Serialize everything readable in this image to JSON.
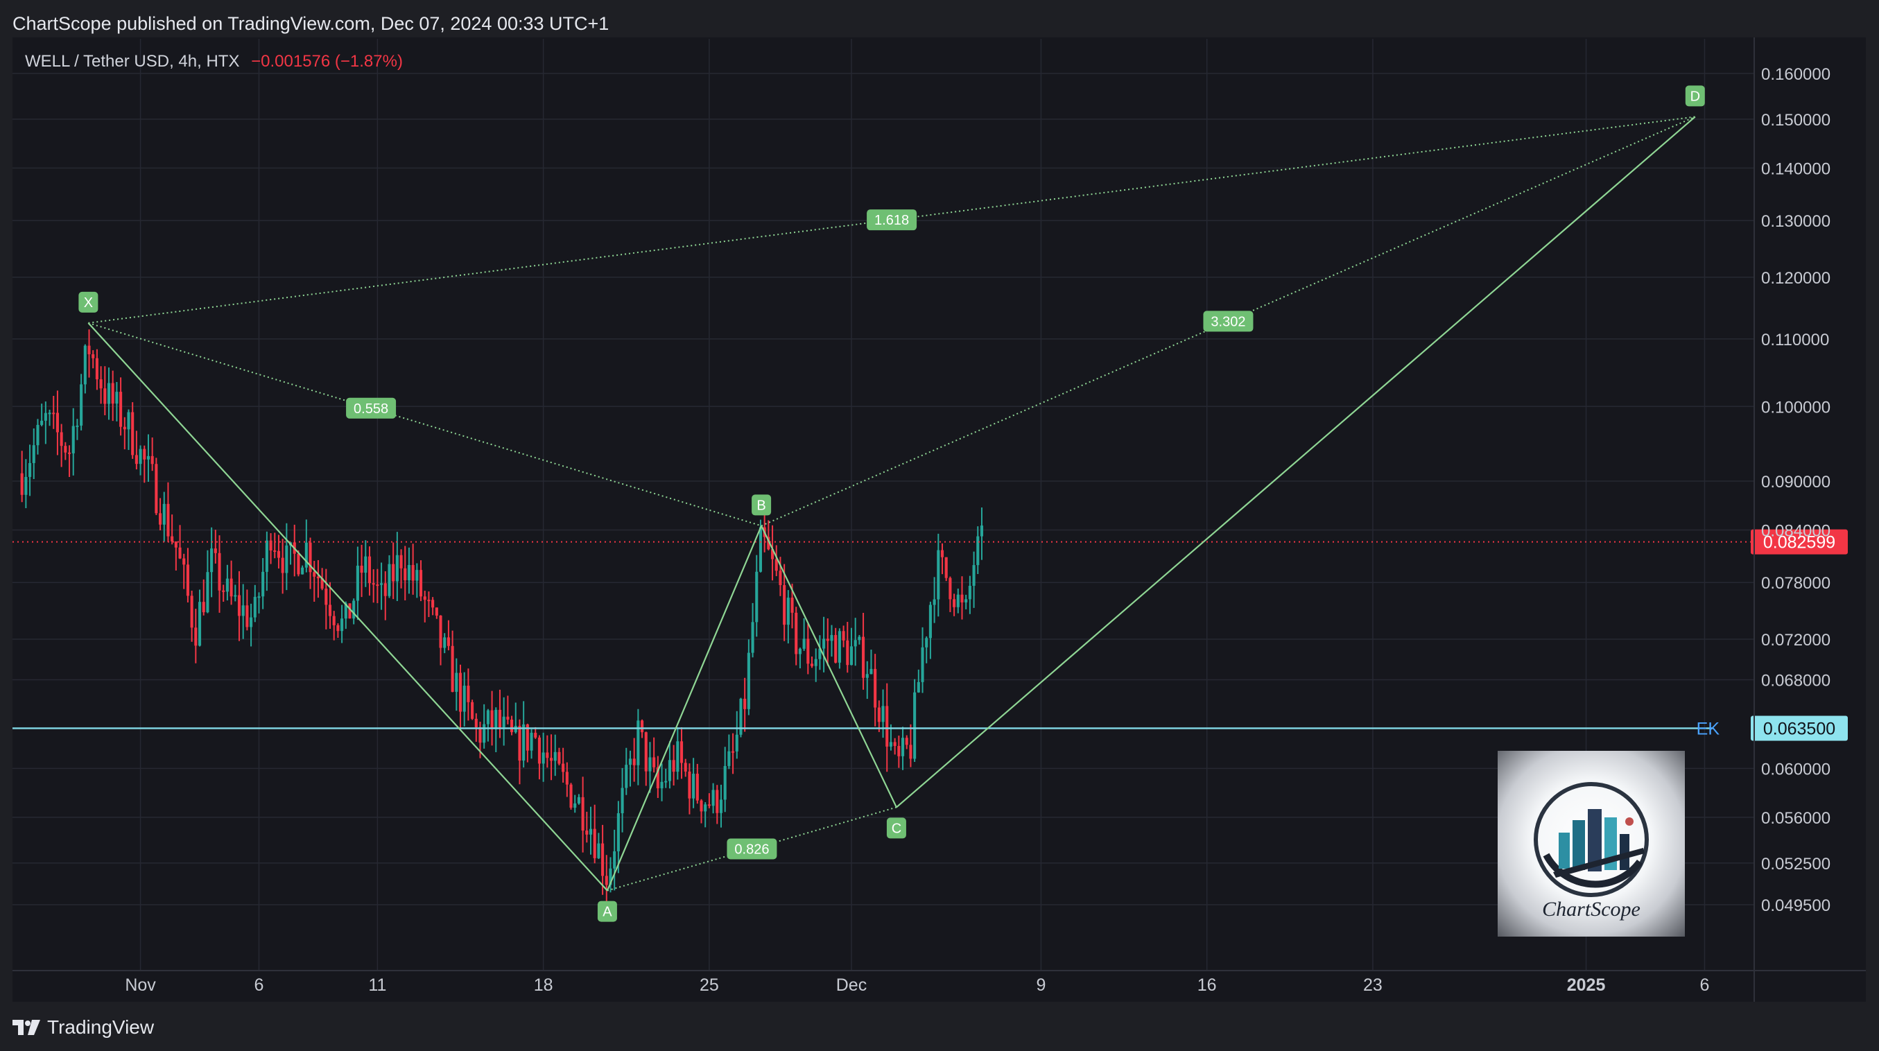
{
  "header": {
    "published": "ChartScope published on TradingView.com, Dec 07, 2024 00:33 UTC+1"
  },
  "symbol": {
    "name": "WELL / Tether USD, 4h, HTX",
    "change": "−0.001576 (−1.87%)"
  },
  "footer": {
    "brand": "TradingView"
  },
  "logo": {
    "text": "ChartScope"
  },
  "colors": {
    "up": "#26a69a",
    "down": "#f23645",
    "pattern": "#8fd694",
    "label_bg": "#6fbf73",
    "level_line": "#7fd3e0",
    "price_tag": "#f23645",
    "level_tag": "#8ee3ee"
  },
  "chart_data": {
    "type": "candlestick",
    "y_scale": "log",
    "ylim": [
      0.046,
      0.168
    ],
    "y_ticks": [
      {
        "v": 0.16,
        "label": "0.160000"
      },
      {
        "v": 0.15,
        "label": "0.150000"
      },
      {
        "v": 0.14,
        "label": "0.140000"
      },
      {
        "v": 0.13,
        "label": "0.130000"
      },
      {
        "v": 0.12,
        "label": "0.120000"
      },
      {
        "v": 0.11,
        "label": "0.110000"
      },
      {
        "v": 0.1,
        "label": "0.100000"
      },
      {
        "v": 0.09,
        "label": "0.090000"
      },
      {
        "v": 0.084,
        "label": "0.084000"
      },
      {
        "v": 0.078,
        "label": "0.078000"
      },
      {
        "v": 0.072,
        "label": "0.072000"
      },
      {
        "v": 0.068,
        "label": "0.068000"
      },
      {
        "v": 0.06,
        "label": "0.060000"
      },
      {
        "v": 0.056,
        "label": "0.056000"
      },
      {
        "v": 0.0525,
        "label": "0.052500"
      },
      {
        "v": 0.0495,
        "label": "0.049500"
      }
    ],
    "x_ticks": [
      {
        "day": 32,
        "label": "Nov",
        "bold": false
      },
      {
        "day": 37,
        "label": "6",
        "bold": false
      },
      {
        "day": 42,
        "label": "11",
        "bold": false
      },
      {
        "day": 49,
        "label": "18",
        "bold": false
      },
      {
        "day": 56,
        "label": "25",
        "bold": false
      },
      {
        "day": 62,
        "label": "Dec",
        "bold": false
      },
      {
        "day": 70,
        "label": "9",
        "bold": false
      },
      {
        "day": 77,
        "label": "16",
        "bold": false
      },
      {
        "day": 84,
        "label": "23",
        "bold": false
      },
      {
        "day": 93,
        "label": "2025",
        "bold": true
      },
      {
        "day": 98,
        "label": "6",
        "bold": false
      }
    ],
    "x_range_days": [
      26.6,
      99.8
    ],
    "last_price": {
      "value": 0.082599,
      "label": "0.082599"
    },
    "level": {
      "value": 0.0635,
      "label": "0.063500",
      "name": "EK"
    },
    "pattern": {
      "points": [
        {
          "name": "X",
          "day": 29.8,
          "price": 0.1125
        },
        {
          "name": "A",
          "day": 51.7,
          "price": 0.0505
        },
        {
          "name": "B",
          "day": 58.2,
          "price": 0.0845
        },
        {
          "name": "C",
          "day": 63.9,
          "price": 0.0568
        },
        {
          "name": "D",
          "day": 97.6,
          "price": 0.1505
        }
      ],
      "ratios": [
        {
          "label": "0.558",
          "from": "X",
          "to": "B",
          "pos": 0.42
        },
        {
          "label": "0.826",
          "from": "A",
          "to": "C",
          "pos": 0.5
        },
        {
          "label": "1.618",
          "from": "X",
          "to": "D",
          "pos": 0.5
        },
        {
          "label": "3.302",
          "from": "B",
          "to": "D",
          "pos": 0.5
        }
      ]
    },
    "candles_path": [
      [
        27.0,
        0.091
      ],
      [
        28.0,
        0.098
      ],
      [
        29.0,
        0.094
      ],
      [
        29.8,
        0.109
      ],
      [
        30.5,
        0.102
      ],
      [
        31.5,
        0.097
      ],
      [
        32.5,
        0.09
      ],
      [
        33.5,
        0.082
      ],
      [
        34.3,
        0.073
      ],
      [
        35.0,
        0.08
      ],
      [
        35.8,
        0.076
      ],
      [
        36.8,
        0.074
      ],
      [
        37.5,
        0.084
      ],
      [
        38.2,
        0.08
      ],
      [
        39.0,
        0.082
      ],
      [
        39.8,
        0.077
      ],
      [
        40.6,
        0.073
      ],
      [
        41.4,
        0.08
      ],
      [
        42.2,
        0.076
      ],
      [
        43.0,
        0.081
      ],
      [
        43.8,
        0.077
      ],
      [
        44.6,
        0.072
      ],
      [
        45.4,
        0.067
      ],
      [
        46.2,
        0.063
      ],
      [
        47.0,
        0.064
      ],
      [
        47.8,
        0.062
      ],
      [
        48.6,
        0.063
      ],
      [
        49.4,
        0.06
      ],
      [
        50.2,
        0.058
      ],
      [
        50.9,
        0.056
      ],
      [
        51.7,
        0.0515
      ],
      [
        52.3,
        0.057
      ],
      [
        53.0,
        0.063
      ],
      [
        53.8,
        0.058
      ],
      [
        54.6,
        0.061
      ],
      [
        55.4,
        0.058
      ],
      [
        56.2,
        0.057
      ],
      [
        57.0,
        0.061
      ],
      [
        57.5,
        0.066
      ],
      [
        58.2,
        0.083
      ],
      [
        58.9,
        0.078
      ],
      [
        59.6,
        0.072
      ],
      [
        60.3,
        0.07
      ],
      [
        61.0,
        0.072
      ],
      [
        61.8,
        0.071
      ],
      [
        62.6,
        0.07
      ],
      [
        63.4,
        0.064
      ],
      [
        63.9,
        0.06
      ],
      [
        64.5,
        0.062
      ],
      [
        65.0,
        0.071
      ],
      [
        65.6,
        0.08
      ],
      [
        66.2,
        0.078
      ],
      [
        66.8,
        0.074
      ],
      [
        67.2,
        0.081
      ],
      [
        67.6,
        0.0826
      ]
    ]
  }
}
